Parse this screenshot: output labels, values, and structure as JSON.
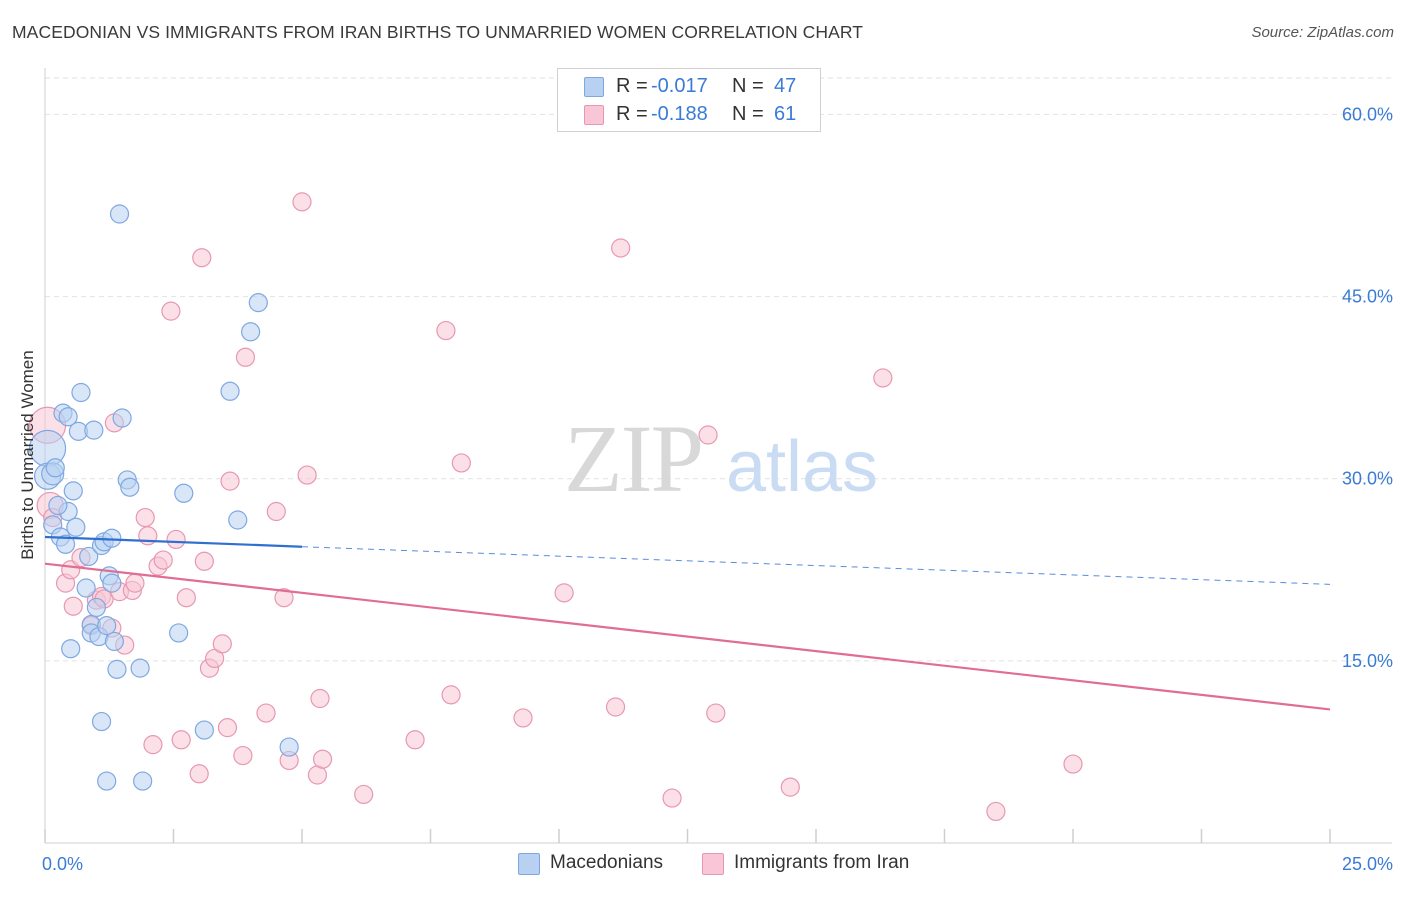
{
  "title": "MACEDONIAN VS IMMIGRANTS FROM IRAN BIRTHS TO UNMARRIED WOMEN CORRELATION CHART",
  "source": "Source: ZipAtlas.com",
  "watermark": {
    "zip": "ZIP",
    "atlas": "atlas"
  },
  "legend": {
    "rows": [
      {
        "r_label": "R =",
        "r_value": "-0.017",
        "n_label": "N =",
        "n_value": "47"
      },
      {
        "r_label": "R =",
        "r_value": "-0.188",
        "n_label": "N =",
        "n_value": "61"
      }
    ]
  },
  "bottom_legend": {
    "macedonians": "Macedonians",
    "iran": "Immigrants from Iran"
  },
  "colors": {
    "blue_fill": "#b8d1f3",
    "blue_stroke": "#7fa8e0",
    "blue_line": "#2f6fd0",
    "pink_fill": "#f8c6d6",
    "pink_stroke": "#e897b2",
    "pink_line": "#e06d95",
    "axis_text": "#3a7bd5",
    "grid": "#e2e2e2"
  },
  "chart_data": {
    "type": "scatter",
    "title": "MACEDONIAN VS IMMIGRANTS FROM IRAN BIRTHS TO UNMARRIED WOMEN CORRELATION CHART",
    "xlabel": "",
    "ylabel": "Births to Unmarried Women",
    "xlim": [
      0,
      25
    ],
    "ylim": [
      0,
      63
    ],
    "x_tick_labels": [
      {
        "value": 0,
        "label": "0.0%"
      },
      {
        "value": 25,
        "label": "25.0%"
      }
    ],
    "x_minor_ticks": [
      0,
      2.5,
      5,
      7.5,
      10,
      12.5,
      15,
      17.5,
      20,
      22.5,
      25
    ],
    "y_ticks": [
      {
        "value": 15,
        "label": "15.0%"
      },
      {
        "value": 30,
        "label": "30.0%"
      },
      {
        "value": 45,
        "label": "45.0%"
      },
      {
        "value": 60,
        "label": "60.0%"
      }
    ],
    "series": [
      {
        "name": "Macedonians",
        "color": "blue",
        "r": -0.017,
        "n": 47,
        "trend": {
          "x0": 0,
          "y0": 25.2,
          "x1": 5,
          "y1": 24.4,
          "dash_x1": 25,
          "dash_y1": 21.3
        },
        "points": [
          [
            0.05,
            32.5,
            18
          ],
          [
            0.05,
            30.2,
            13
          ],
          [
            0.15,
            30.4,
            11
          ],
          [
            0.15,
            26.2,
            9
          ],
          [
            0.3,
            25.2,
            9
          ],
          [
            0.35,
            35.4,
            9
          ],
          [
            0.4,
            24.6,
            9
          ],
          [
            0.45,
            27.3,
            9
          ],
          [
            0.45,
            35.1,
            9
          ],
          [
            0.55,
            29.0,
            9
          ],
          [
            0.6,
            26.0,
            9
          ],
          [
            0.65,
            33.9,
            9
          ],
          [
            0.7,
            37.1,
            9
          ],
          [
            0.85,
            23.6,
            9
          ],
          [
            0.9,
            18.0,
            9
          ],
          [
            0.9,
            17.3,
            9
          ],
          [
            0.95,
            34.0,
            9
          ],
          [
            1.0,
            19.4,
            9
          ],
          [
            1.05,
            17.0,
            9
          ],
          [
            1.1,
            24.5,
            9
          ],
          [
            1.15,
            24.8,
            9
          ],
          [
            1.2,
            17.9,
            9
          ],
          [
            1.25,
            22.0,
            9
          ],
          [
            1.3,
            25.1,
            9
          ],
          [
            1.3,
            21.4,
            9
          ],
          [
            1.35,
            16.6,
            9
          ],
          [
            1.4,
            14.3,
            9
          ],
          [
            1.45,
            51.8,
            9
          ],
          [
            1.5,
            35.0,
            9
          ],
          [
            1.6,
            29.9,
            9
          ],
          [
            1.65,
            29.3,
            9
          ],
          [
            1.85,
            14.4,
            9
          ],
          [
            2.6,
            17.3,
            9
          ],
          [
            2.7,
            28.8,
            9
          ],
          [
            3.1,
            9.3,
            9
          ],
          [
            3.6,
            37.2,
            9
          ],
          [
            3.75,
            26.6,
            9
          ],
          [
            4.0,
            42.1,
            9
          ],
          [
            4.15,
            44.5,
            9
          ],
          [
            4.75,
            7.9,
            9
          ],
          [
            0.2,
            30.9,
            9
          ],
          [
            0.25,
            27.8,
            9
          ],
          [
            0.5,
            16.0,
            9
          ],
          [
            1.1,
            10.0,
            9
          ],
          [
            1.2,
            5.1,
            9
          ],
          [
            1.9,
            5.1,
            9
          ],
          [
            0.8,
            21.0,
            9
          ]
        ]
      },
      {
        "name": "Immigrants from Iran",
        "color": "pink",
        "r": -0.188,
        "n": 61,
        "trend": {
          "x0": 0,
          "y0": 23.0,
          "x1": 25,
          "y1": 11.0
        },
        "points": [
          [
            0.05,
            34.4,
            18
          ],
          [
            0.1,
            27.8,
            13
          ],
          [
            0.15,
            26.8,
            9
          ],
          [
            0.4,
            21.4,
            9
          ],
          [
            0.5,
            22.5,
            9
          ],
          [
            0.55,
            19.5,
            9
          ],
          [
            0.7,
            23.5,
            9
          ],
          [
            0.9,
            17.9,
            9
          ],
          [
            1.0,
            20.0,
            9
          ],
          [
            1.1,
            20.3,
            9
          ],
          [
            1.15,
            20.1,
            9
          ],
          [
            1.3,
            17.7,
            9
          ],
          [
            1.35,
            34.6,
            9
          ],
          [
            1.45,
            20.7,
            9
          ],
          [
            1.55,
            16.3,
            9
          ],
          [
            1.7,
            20.8,
            9
          ],
          [
            1.75,
            21.4,
            9
          ],
          [
            1.95,
            26.8,
            9
          ],
          [
            2.0,
            25.3,
            9
          ],
          [
            2.1,
            8.1,
            9
          ],
          [
            2.2,
            22.8,
            9
          ],
          [
            2.3,
            23.3,
            9
          ],
          [
            2.45,
            43.8,
            9
          ],
          [
            2.55,
            25.0,
            9
          ],
          [
            2.65,
            8.5,
            9
          ],
          [
            2.75,
            20.2,
            9
          ],
          [
            3.0,
            5.7,
            9
          ],
          [
            3.05,
            48.2,
            9
          ],
          [
            3.1,
            23.2,
            9
          ],
          [
            3.2,
            14.4,
            9
          ],
          [
            3.3,
            15.2,
            9
          ],
          [
            3.45,
            16.4,
            9
          ],
          [
            3.55,
            9.5,
            9
          ],
          [
            3.6,
            29.8,
            9
          ],
          [
            3.85,
            7.2,
            9
          ],
          [
            3.9,
            40.0,
            9
          ],
          [
            4.3,
            10.7,
            9
          ],
          [
            4.5,
            27.3,
            9
          ],
          [
            4.65,
            20.2,
            9
          ],
          [
            4.75,
            6.8,
            9
          ],
          [
            5.0,
            52.8,
            9
          ],
          [
            5.1,
            30.3,
            9
          ],
          [
            5.3,
            5.6,
            9
          ],
          [
            5.35,
            11.9,
            9
          ],
          [
            5.4,
            6.9,
            9
          ],
          [
            6.2,
            4.0,
            9
          ],
          [
            7.2,
            8.5,
            9
          ],
          [
            7.8,
            42.2,
            9
          ],
          [
            7.9,
            12.2,
            9
          ],
          [
            8.1,
            31.3,
            9
          ],
          [
            9.3,
            10.3,
            9
          ],
          [
            10.1,
            20.6,
            9
          ],
          [
            11.1,
            11.2,
            9
          ],
          [
            11.2,
            49.0,
            9
          ],
          [
            12.2,
            3.7,
            9
          ],
          [
            12.9,
            33.6,
            9
          ],
          [
            13.05,
            10.7,
            9
          ],
          [
            14.5,
            4.6,
            9
          ],
          [
            16.3,
            38.3,
            9
          ],
          [
            18.5,
            2.6,
            9
          ],
          [
            20.0,
            6.5,
            9
          ]
        ]
      }
    ]
  }
}
